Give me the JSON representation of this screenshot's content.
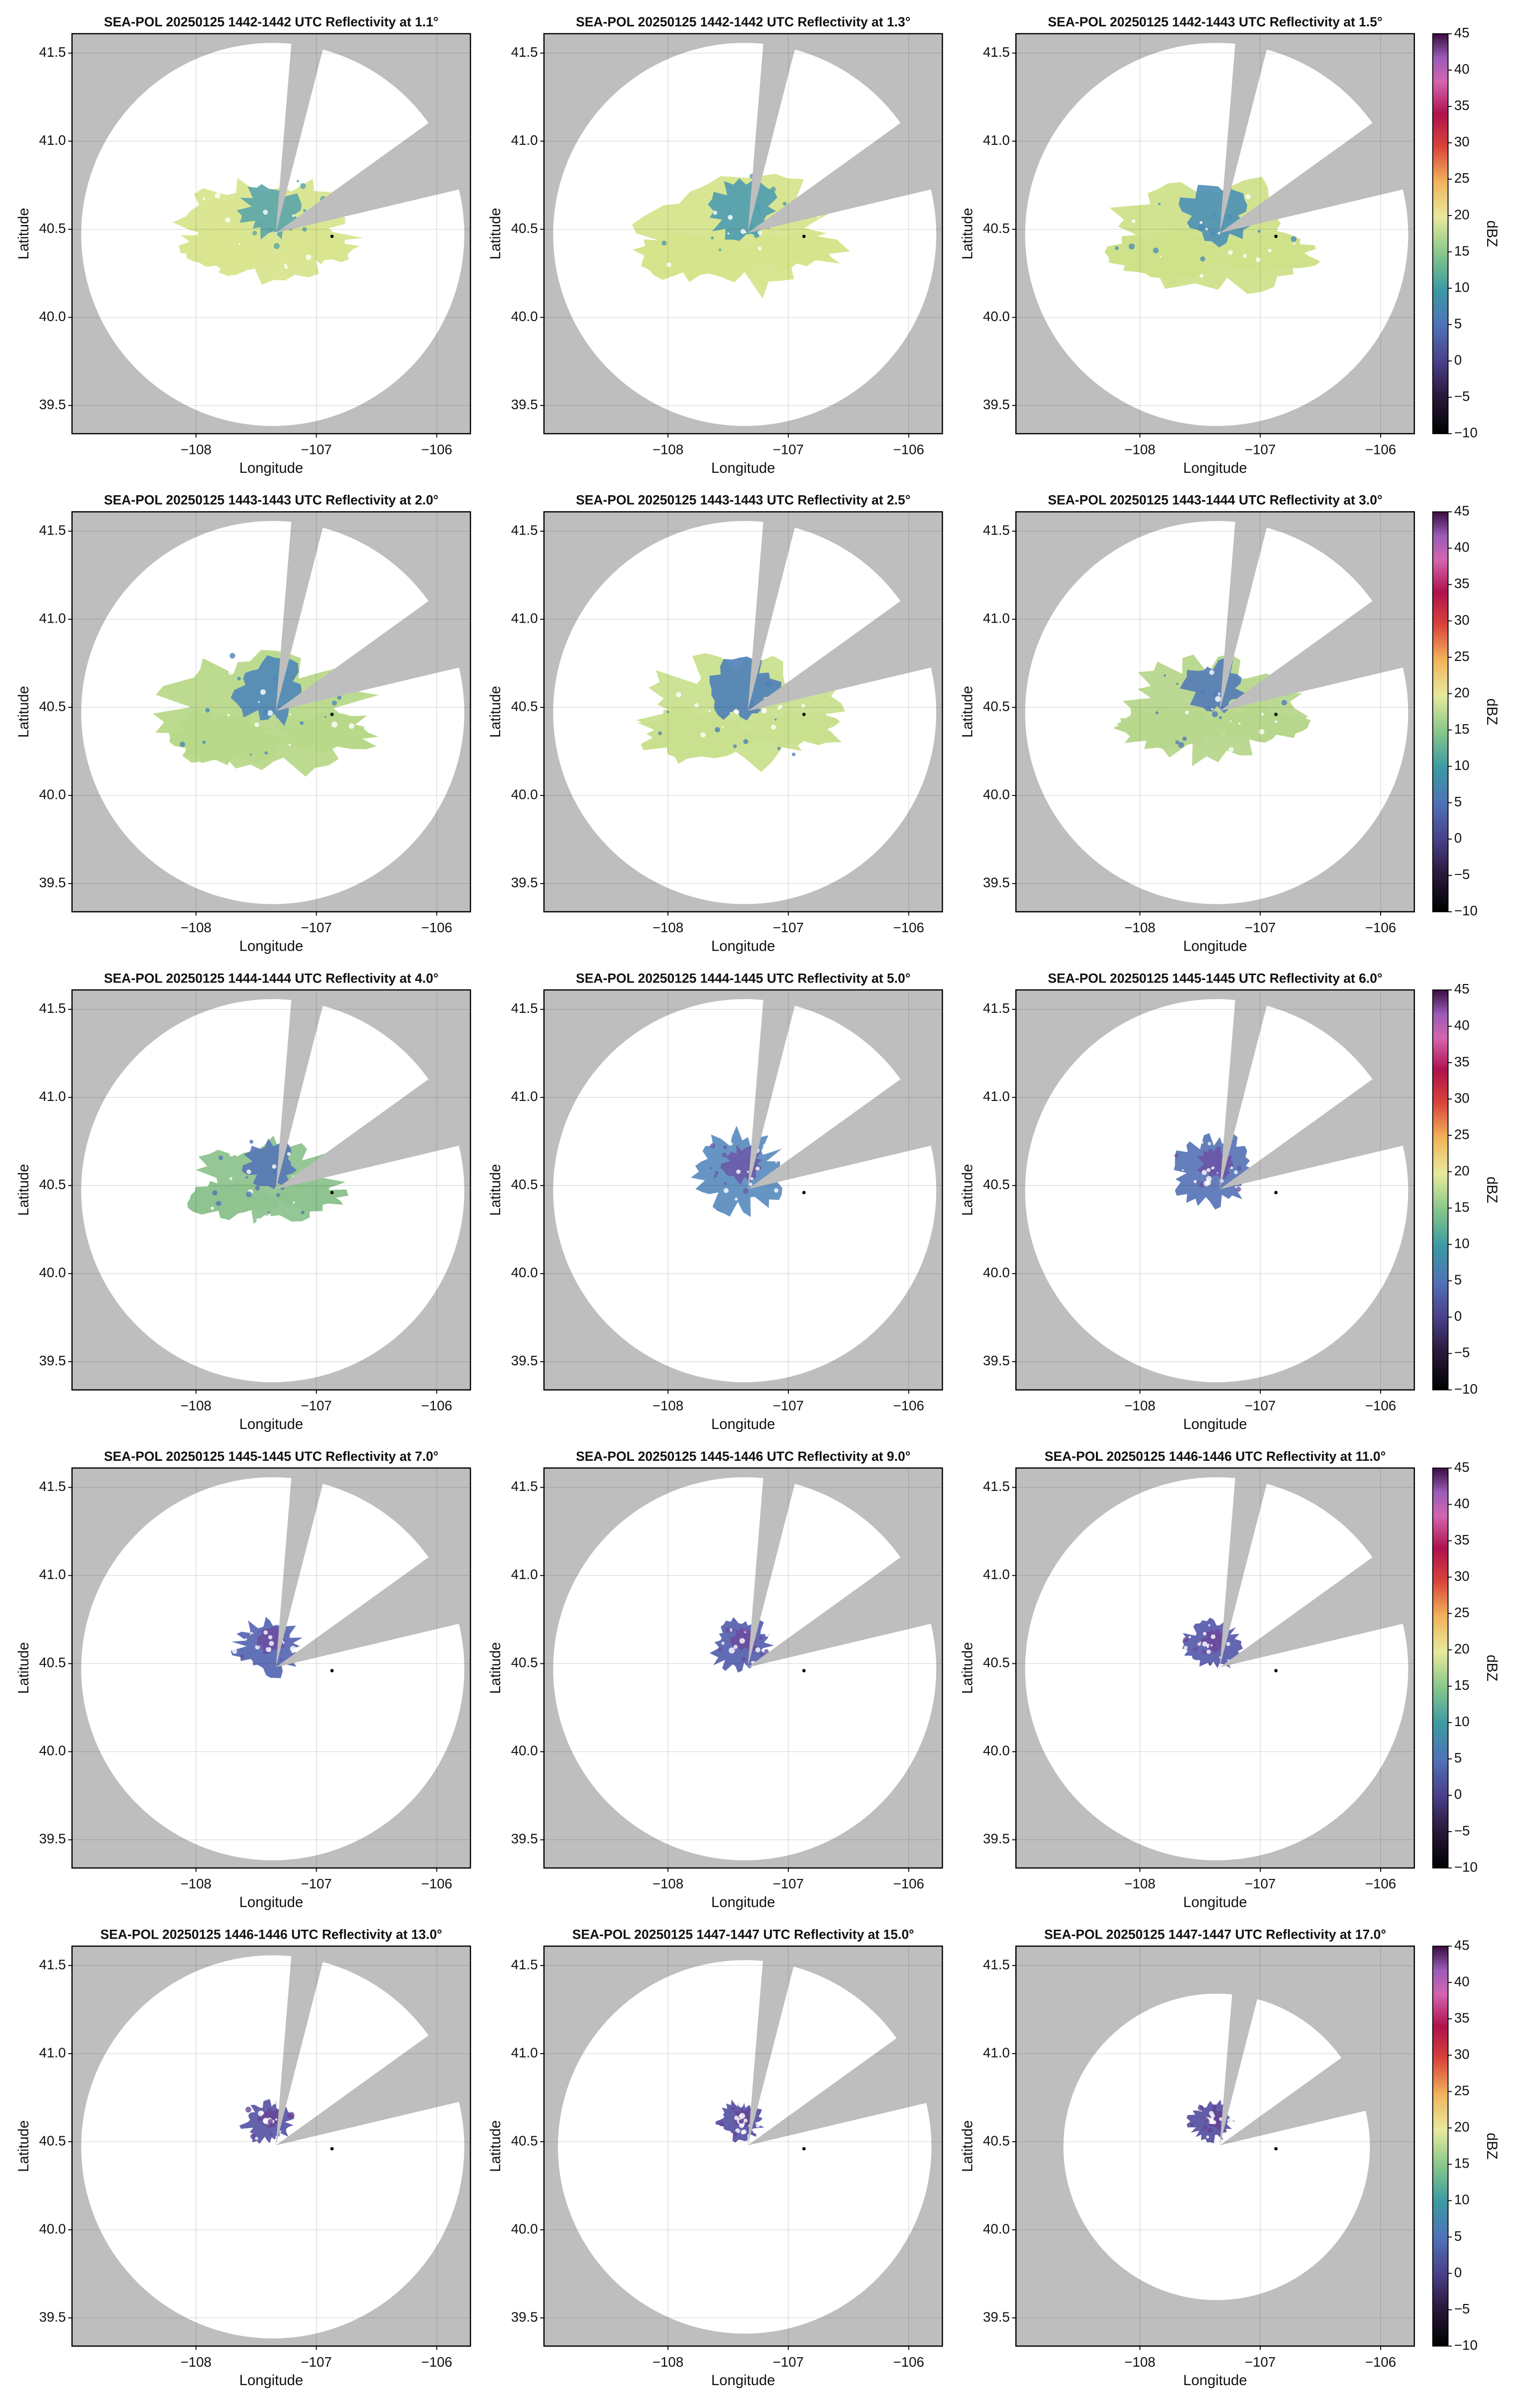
{
  "chart_data": [
    {
      "type": "ppi",
      "title": "SEA-POL 20250125 1442-1442 UTC Reflectivity at 1.1°",
      "x_label": "Longitude",
      "y_label": "Latitude",
      "xlim": [
        -109.03,
        -105.72
      ],
      "ylim": [
        39.34,
        41.61
      ],
      "xticks": [
        {
          "value": -108,
          "label": "−108"
        },
        {
          "value": -107,
          "label": "−107"
        },
        {
          "value": -106,
          "label": "−106"
        }
      ],
      "yticks": [
        39.5,
        {
          "value": 40,
          "label": "40.0"
        },
        40.5,
        {
          "value": 41,
          "label": "41.0"
        },
        41.5
      ],
      "grid": true,
      "site": {
        "x": -106.87,
        "y": 40.46
      }
    },
    {
      "type": "ppi",
      "title": "SEA-POL 20250125 1442-1442 UTC Reflectivity at 1.3°",
      "x_label": "Longitude",
      "y_label": "Latitude",
      "xlim": [
        -109.03,
        -105.72
      ],
      "ylim": [
        39.34,
        41.61
      ],
      "xticks": [
        {
          "value": -108,
          "label": "−108"
        },
        {
          "value": -107,
          "label": "−107"
        },
        {
          "value": -106,
          "label": "−106"
        }
      ],
      "yticks": [
        39.5,
        {
          "value": 40,
          "label": "40.0"
        },
        40.5,
        {
          "value": 41,
          "label": "41.0"
        },
        41.5
      ],
      "grid": true,
      "site": {
        "x": -106.87,
        "y": 40.46
      }
    },
    {
      "type": "ppi",
      "title": "SEA-POL 20250125 1442-1443 UTC Reflectivity at 1.5°",
      "x_label": "Longitude",
      "y_label": "Latitude",
      "xlim": [
        -109.03,
        -105.72
      ],
      "ylim": [
        39.34,
        41.61
      ],
      "xticks": [
        {
          "value": -108,
          "label": "−108"
        },
        {
          "value": -107,
          "label": "−107"
        },
        {
          "value": -106,
          "label": "−106"
        }
      ],
      "yticks": [
        39.5,
        {
          "value": 40,
          "label": "40.0"
        },
        40.5,
        {
          "value": 41,
          "label": "41.0"
        },
        41.5
      ],
      "grid": true,
      "site": {
        "x": -106.87,
        "y": 40.46
      },
      "colorbar": {
        "label": "dBZ",
        "lim": [
          -10,
          45
        ],
        "ticks": [
          {
            "value": -10,
            "label": "−10"
          },
          {
            "value": -5,
            "label": "−5"
          },
          0,
          5,
          10,
          15,
          20,
          25,
          30,
          35,
          40,
          45
        ]
      }
    },
    {
      "type": "ppi",
      "title": "SEA-POL 20250125 1443-1443 UTC Reflectivity at 2.0°",
      "x_label": "Longitude",
      "y_label": "Latitude",
      "xlim": [
        -109.03,
        -105.72
      ],
      "ylim": [
        39.34,
        41.61
      ],
      "xticks": [
        {
          "value": -108,
          "label": "−108"
        },
        {
          "value": -107,
          "label": "−107"
        },
        {
          "value": -106,
          "label": "−106"
        }
      ],
      "yticks": [
        39.5,
        {
          "value": 40,
          "label": "40.0"
        },
        40.5,
        {
          "value": 41,
          "label": "41.0"
        },
        41.5
      ],
      "grid": true,
      "site": {
        "x": -106.87,
        "y": 40.46
      }
    },
    {
      "type": "ppi",
      "title": "SEA-POL 20250125 1443-1443 UTC Reflectivity at 2.5°",
      "x_label": "Longitude",
      "y_label": "Latitude",
      "xlim": [
        -109.03,
        -105.72
      ],
      "ylim": [
        39.34,
        41.61
      ],
      "xticks": [
        {
          "value": -108,
          "label": "−108"
        },
        {
          "value": -107,
          "label": "−107"
        },
        {
          "value": -106,
          "label": "−106"
        }
      ],
      "yticks": [
        39.5,
        {
          "value": 40,
          "label": "40.0"
        },
        40.5,
        {
          "value": 41,
          "label": "41.0"
        },
        41.5
      ],
      "grid": true,
      "site": {
        "x": -106.87,
        "y": 40.46
      }
    },
    {
      "type": "ppi",
      "title": "SEA-POL 20250125 1443-1444 UTC Reflectivity at 3.0°",
      "x_label": "Longitude",
      "y_label": "Latitude",
      "xlim": [
        -109.03,
        -105.72
      ],
      "ylim": [
        39.34,
        41.61
      ],
      "xticks": [
        {
          "value": -108,
          "label": "−108"
        },
        {
          "value": -107,
          "label": "−107"
        },
        {
          "value": -106,
          "label": "−106"
        }
      ],
      "yticks": [
        39.5,
        {
          "value": 40,
          "label": "40.0"
        },
        40.5,
        {
          "value": 41,
          "label": "41.0"
        },
        41.5
      ],
      "grid": true,
      "site": {
        "x": -106.87,
        "y": 40.46
      },
      "colorbar": {
        "label": "dBZ",
        "lim": [
          -10,
          45
        ],
        "ticks": [
          {
            "value": -10,
            "label": "−10"
          },
          {
            "value": -5,
            "label": "−5"
          },
          0,
          5,
          10,
          15,
          20,
          25,
          30,
          35,
          40,
          45
        ]
      }
    },
    {
      "type": "ppi",
      "title": "SEA-POL 20250125 1444-1444 UTC Reflectivity at 4.0°",
      "x_label": "Longitude",
      "y_label": "Latitude",
      "xlim": [
        -109.03,
        -105.72
      ],
      "ylim": [
        39.34,
        41.61
      ],
      "xticks": [
        {
          "value": -108,
          "label": "−108"
        },
        {
          "value": -107,
          "label": "−107"
        },
        {
          "value": -106,
          "label": "−106"
        }
      ],
      "yticks": [
        39.5,
        {
          "value": 40,
          "label": "40.0"
        },
        40.5,
        {
          "value": 41,
          "label": "41.0"
        },
        41.5
      ],
      "grid": true,
      "site": {
        "x": -106.87,
        "y": 40.46
      }
    },
    {
      "type": "ppi",
      "title": "SEA-POL 20250125 1444-1445 UTC Reflectivity at 5.0°",
      "x_label": "Longitude",
      "y_label": "Latitude",
      "xlim": [
        -109.03,
        -105.72
      ],
      "ylim": [
        39.34,
        41.61
      ],
      "xticks": [
        {
          "value": -108,
          "label": "−108"
        },
        {
          "value": -107,
          "label": "−107"
        },
        {
          "value": -106,
          "label": "−106"
        }
      ],
      "yticks": [
        39.5,
        {
          "value": 40,
          "label": "40.0"
        },
        40.5,
        {
          "value": 41,
          "label": "41.0"
        },
        41.5
      ],
      "grid": true,
      "site": {
        "x": -106.87,
        "y": 40.46
      }
    },
    {
      "type": "ppi",
      "title": "SEA-POL 20250125 1445-1445 UTC Reflectivity at 6.0°",
      "x_label": "Longitude",
      "y_label": "Latitude",
      "xlim": [
        -109.03,
        -105.72
      ],
      "ylim": [
        39.34,
        41.61
      ],
      "xticks": [
        {
          "value": -108,
          "label": "−108"
        },
        {
          "value": -107,
          "label": "−107"
        },
        {
          "value": -106,
          "label": "−106"
        }
      ],
      "yticks": [
        39.5,
        {
          "value": 40,
          "label": "40.0"
        },
        40.5,
        {
          "value": 41,
          "label": "41.0"
        },
        41.5
      ],
      "grid": true,
      "site": {
        "x": -106.87,
        "y": 40.46
      },
      "colorbar": {
        "label": "dBZ",
        "lim": [
          -10,
          45
        ],
        "ticks": [
          {
            "value": -10,
            "label": "−10"
          },
          {
            "value": -5,
            "label": "−5"
          },
          0,
          5,
          10,
          15,
          20,
          25,
          30,
          35,
          40,
          45
        ]
      }
    },
    {
      "type": "ppi",
      "title": "SEA-POL 20250125 1445-1445 UTC Reflectivity at 7.0°",
      "x_label": "Longitude",
      "y_label": "Latitude",
      "xlim": [
        -109.03,
        -105.72
      ],
      "ylim": [
        39.34,
        41.61
      ],
      "xticks": [
        {
          "value": -108,
          "label": "−108"
        },
        {
          "value": -107,
          "label": "−107"
        },
        {
          "value": -106,
          "label": "−106"
        }
      ],
      "yticks": [
        39.5,
        {
          "value": 40,
          "label": "40.0"
        },
        40.5,
        {
          "value": 41,
          "label": "41.0"
        },
        41.5
      ],
      "grid": true,
      "site": {
        "x": -106.87,
        "y": 40.46
      }
    },
    {
      "type": "ppi",
      "title": "SEA-POL 20250125 1445-1446 UTC Reflectivity at 9.0°",
      "x_label": "Longitude",
      "y_label": "Latitude",
      "xlim": [
        -109.03,
        -105.72
      ],
      "ylim": [
        39.34,
        41.61
      ],
      "xticks": [
        {
          "value": -108,
          "label": "−108"
        },
        {
          "value": -107,
          "label": "−107"
        },
        {
          "value": -106,
          "label": "−106"
        }
      ],
      "yticks": [
        39.5,
        {
          "value": 40,
          "label": "40.0"
        },
        40.5,
        {
          "value": 41,
          "label": "41.0"
        },
        41.5
      ],
      "grid": true,
      "site": {
        "x": -106.87,
        "y": 40.46
      }
    },
    {
      "type": "ppi",
      "title": "SEA-POL 20250125 1446-1446 UTC Reflectivity at 11.0°",
      "x_label": "Longitude",
      "y_label": "Latitude",
      "xlim": [
        -109.03,
        -105.72
      ],
      "ylim": [
        39.34,
        41.61
      ],
      "xticks": [
        {
          "value": -108,
          "label": "−108"
        },
        {
          "value": -107,
          "label": "−107"
        },
        {
          "value": -106,
          "label": "−106"
        }
      ],
      "yticks": [
        39.5,
        {
          "value": 40,
          "label": "40.0"
        },
        40.5,
        {
          "value": 41,
          "label": "41.0"
        },
        41.5
      ],
      "grid": true,
      "site": {
        "x": -106.87,
        "y": 40.46
      },
      "colorbar": {
        "label": "dBZ",
        "lim": [
          -10,
          45
        ],
        "ticks": [
          {
            "value": -10,
            "label": "−10"
          },
          {
            "value": -5,
            "label": "−5"
          },
          0,
          5,
          10,
          15,
          20,
          25,
          30,
          35,
          40,
          45
        ]
      }
    },
    {
      "type": "ppi",
      "title": "SEA-POL 20250125 1446-1446 UTC Reflectivity at 13.0°",
      "x_label": "Longitude",
      "y_label": "Latitude",
      "xlim": [
        -109.03,
        -105.72
      ],
      "ylim": [
        39.34,
        41.61
      ],
      "xticks": [
        {
          "value": -108,
          "label": "−108"
        },
        {
          "value": -107,
          "label": "−107"
        },
        {
          "value": -106,
          "label": "−106"
        }
      ],
      "yticks": [
        39.5,
        {
          "value": 40,
          "label": "40.0"
        },
        40.5,
        {
          "value": 41,
          "label": "41.0"
        },
        41.5
      ],
      "grid": true,
      "site": {
        "x": -106.87,
        "y": 40.46
      }
    },
    {
      "type": "ppi",
      "title": "SEA-POL 20250125 1447-1447 UTC Reflectivity at 15.0°",
      "x_label": "Longitude",
      "y_label": "Latitude",
      "xlim": [
        -109.03,
        -105.72
      ],
      "ylim": [
        39.34,
        41.61
      ],
      "xticks": [
        {
          "value": -108,
          "label": "−108"
        },
        {
          "value": -107,
          "label": "−107"
        },
        {
          "value": -106,
          "label": "−106"
        }
      ],
      "yticks": [
        39.5,
        {
          "value": 40,
          "label": "40.0"
        },
        40.5,
        {
          "value": 41,
          "label": "41.0"
        },
        41.5
      ],
      "grid": true,
      "site": {
        "x": -106.87,
        "y": 40.46
      }
    },
    {
      "type": "ppi",
      "title": "SEA-POL 20250125 1447-1447 UTC Reflectivity at 17.0°",
      "x_label": "Longitude",
      "y_label": "Latitude",
      "xlim": [
        -109.03,
        -105.72
      ],
      "ylim": [
        39.34,
        41.61
      ],
      "xticks": [
        {
          "value": -108,
          "label": "−108"
        },
        {
          "value": -107,
          "label": "−107"
        },
        {
          "value": -106,
          "label": "−106"
        }
      ],
      "yticks": [
        39.5,
        {
          "value": 40,
          "label": "40.0"
        },
        40.5,
        {
          "value": 41,
          "label": "41.0"
        },
        41.5
      ],
      "grid": true,
      "site": {
        "x": -106.87,
        "y": 40.46
      },
      "colorbar": {
        "label": "dBZ",
        "lim": [
          -10,
          45
        ],
        "ticks": [
          {
            "value": -10,
            "label": "−10"
          },
          {
            "value": -5,
            "label": "−5"
          },
          0,
          5,
          10,
          15,
          20,
          25,
          30,
          35,
          40,
          45
        ]
      }
    }
  ]
}
